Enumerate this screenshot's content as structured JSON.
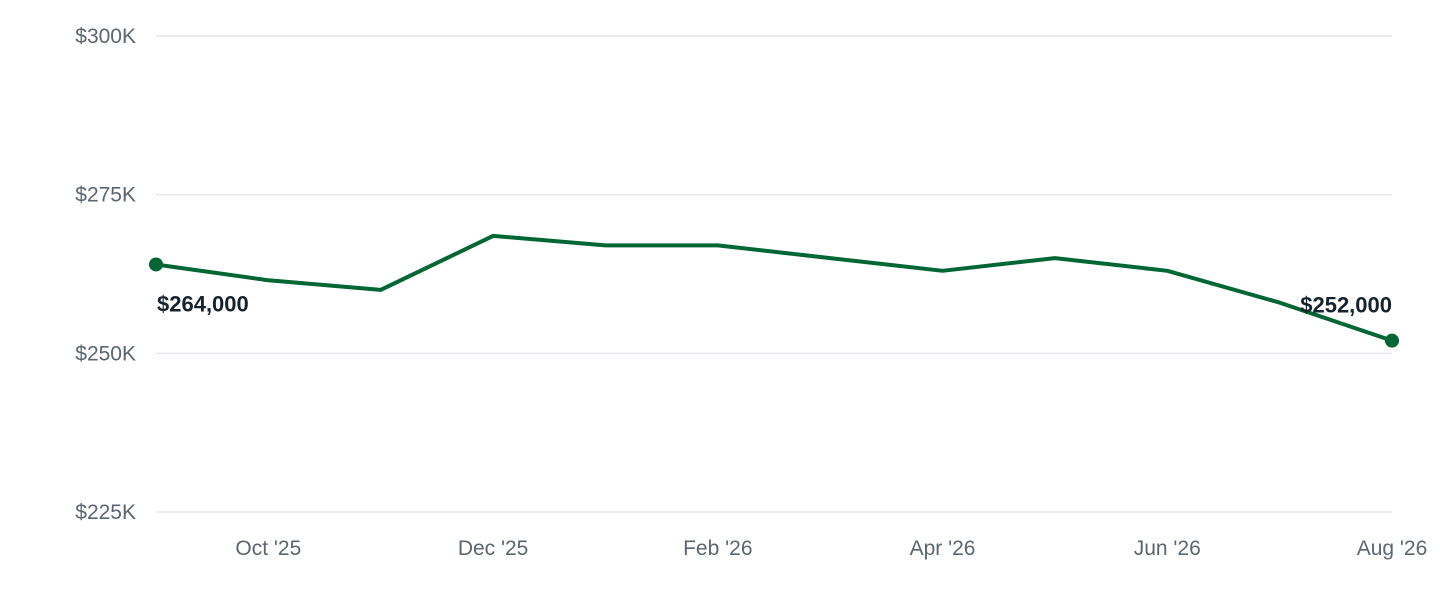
{
  "colors": {
    "line": "#006633",
    "grid": "#e3e6ea",
    "tick_text": "#5b6670",
    "label_text": "#15232e"
  },
  "chart_data": {
    "type": "line",
    "title": "",
    "xlabel": "",
    "ylabel": "",
    "x": [
      "Sep '25",
      "Oct '25",
      "Nov '25",
      "Dec '25",
      "Jan '26",
      "Feb '26",
      "Mar '26",
      "Apr '26",
      "May '26",
      "Jun '26",
      "Jul '26",
      "Aug '26"
    ],
    "series": [
      {
        "values": [
          264000,
          261500,
          260000,
          268500,
          267000,
          267000,
          265000,
          263000,
          265000,
          263000,
          258000,
          252000
        ]
      }
    ],
    "ylim": [
      225000,
      300000
    ],
    "y_ticks": [
      225000,
      250000,
      275000,
      300000
    ],
    "y_tick_labels": [
      "$225K",
      "$250K",
      "$275K",
      "$300K"
    ],
    "x_tick_labels": [
      "Oct '25",
      "Dec '25",
      "Feb '26",
      "Apr '26",
      "Jun '26",
      "Aug '26"
    ],
    "x_tick_indices": [
      1,
      3,
      5,
      7,
      9,
      11
    ],
    "endpoint_labels": {
      "start": "$264,000",
      "end": "$252,000"
    },
    "grid": true,
    "legend": "none"
  }
}
